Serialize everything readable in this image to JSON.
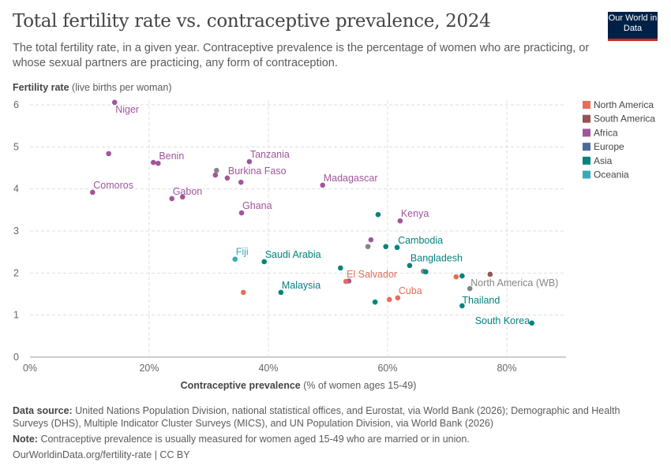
{
  "header": {
    "title": "Total fertility rate vs. contraceptive prevalence, 2024",
    "subtitle": "The total fertility rate, in a given year. Contraceptive prevalence is the percentage of women who are practicing, or whose sexual partners are practicing, any form of contraception.",
    "logo": "Our World in Data"
  },
  "footer": {
    "source_label": "Data source:",
    "source": "United Nations Population Division, national statistical offices, and Eurostat, via World Bank (2026); Demographic and Health Surveys (DHS), Multiple Indicator Cluster Surveys (MICS), and UN Population Division, via World Bank (2026)",
    "note_label": "Note:",
    "note": "Contraceptive prevalence is usually measured for women aged 15-49 who are married or in union.",
    "url": "OurWorldinData.org/fertility-rate | CC BY"
  },
  "chart_data": {
    "type": "scatter",
    "ylabel_bold": "Fertility rate",
    "ylabel_rest": "(live births per woman)",
    "xlabel_bold": "Contraceptive prevalence",
    "xlabel_rest": "(% of women ages 15-49)",
    "xlim": [
      0,
      90
    ],
    "ylim": [
      0,
      6
    ],
    "grid": true,
    "legend_position": "right",
    "xticks": [
      "0%",
      "20%",
      "40%",
      "60%",
      "80%"
    ],
    "xtick_values": [
      0,
      20,
      40,
      60,
      80
    ],
    "yticks": [
      "0",
      "1",
      "2",
      "3",
      "4",
      "5",
      "6"
    ],
    "ytick_values": [
      0,
      1,
      2,
      3,
      4,
      5,
      6
    ],
    "colors": {
      "North America": "#e56e5a",
      "South America": "#9a5054",
      "Africa": "#a2559c",
      "Europe": "#4c6a9c",
      "Asia": "#00847e",
      "Oceania": "#38aaba",
      "Other": "#858585"
    },
    "legend": [
      "North America",
      "South America",
      "Africa",
      "Europe",
      "Asia",
      "Oceania"
    ],
    "points": [
      {
        "x": 14.2,
        "y": 6.06,
        "region": "Africa",
        "label": "Niger"
      },
      {
        "x": 13.2,
        "y": 4.84,
        "region": "Africa"
      },
      {
        "x": 20.7,
        "y": 4.63,
        "region": "Africa"
      },
      {
        "x": 21.5,
        "y": 4.61,
        "region": "Africa",
        "label": "Benin"
      },
      {
        "x": 10.5,
        "y": 3.92,
        "region": "Africa",
        "label": "Comoros"
      },
      {
        "x": 36.8,
        "y": 4.65,
        "region": "Africa",
        "label": "Tanzania"
      },
      {
        "x": 31.3,
        "y": 4.44,
        "region": "Other"
      },
      {
        "x": 31.1,
        "y": 4.33,
        "region": "Africa"
      },
      {
        "x": 33.1,
        "y": 4.26,
        "region": "Africa",
        "label": "Burkina Faso"
      },
      {
        "x": 35.4,
        "y": 4.16,
        "region": "Africa"
      },
      {
        "x": 49.1,
        "y": 4.09,
        "region": "Africa",
        "label": "Madagascar"
      },
      {
        "x": 23.8,
        "y": 3.77,
        "region": "Africa",
        "label": "Gabon"
      },
      {
        "x": 25.6,
        "y": 3.81,
        "region": "Africa"
      },
      {
        "x": 35.5,
        "y": 3.43,
        "region": "Africa",
        "label": "Ghana"
      },
      {
        "x": 58.4,
        "y": 3.39,
        "region": "Asia"
      },
      {
        "x": 62.1,
        "y": 3.24,
        "region": "Africa",
        "label": "Kenya"
      },
      {
        "x": 57.2,
        "y": 2.79,
        "region": "Africa"
      },
      {
        "x": 56.7,
        "y": 2.63,
        "region": "Other"
      },
      {
        "x": 59.7,
        "y": 2.63,
        "region": "Asia"
      },
      {
        "x": 61.6,
        "y": 2.61,
        "region": "Asia",
        "label": "Cambodia"
      },
      {
        "x": 34.4,
        "y": 2.33,
        "region": "Oceania",
        "label": "Fiji"
      },
      {
        "x": 39.3,
        "y": 2.27,
        "region": "Asia",
        "label": "Saudi Arabia"
      },
      {
        "x": 52.1,
        "y": 2.12,
        "region": "Asia"
      },
      {
        "x": 63.7,
        "y": 2.18,
        "region": "Asia",
        "label": "Bangladesh"
      },
      {
        "x": 66.0,
        "y": 2.04,
        "region": "Other"
      },
      {
        "x": 66.4,
        "y": 2.03,
        "region": "Asia"
      },
      {
        "x": 53.5,
        "y": 1.81,
        "region": "Africa"
      },
      {
        "x": 53.0,
        "y": 1.8,
        "region": "North America",
        "label": "El Salvador"
      },
      {
        "x": 71.5,
        "y": 1.91,
        "region": "North America"
      },
      {
        "x": 72.5,
        "y": 1.93,
        "region": "Asia"
      },
      {
        "x": 77.2,
        "y": 1.97,
        "region": "South America"
      },
      {
        "x": 73.8,
        "y": 1.63,
        "region": "Other",
        "label": "North America (WB)"
      },
      {
        "x": 35.8,
        "y": 1.54,
        "region": "North America"
      },
      {
        "x": 42.1,
        "y": 1.54,
        "region": "Asia",
        "label": "Malaysia"
      },
      {
        "x": 57.9,
        "y": 1.31,
        "region": "Asia"
      },
      {
        "x": 60.3,
        "y": 1.37,
        "region": "North America"
      },
      {
        "x": 61.7,
        "y": 1.41,
        "region": "North America",
        "label": "Cuba"
      },
      {
        "x": 72.5,
        "y": 1.22,
        "region": "Asia",
        "label": "Thailand"
      },
      {
        "x": 84.2,
        "y": 0.81,
        "region": "Asia",
        "label": "South Korea"
      }
    ]
  }
}
